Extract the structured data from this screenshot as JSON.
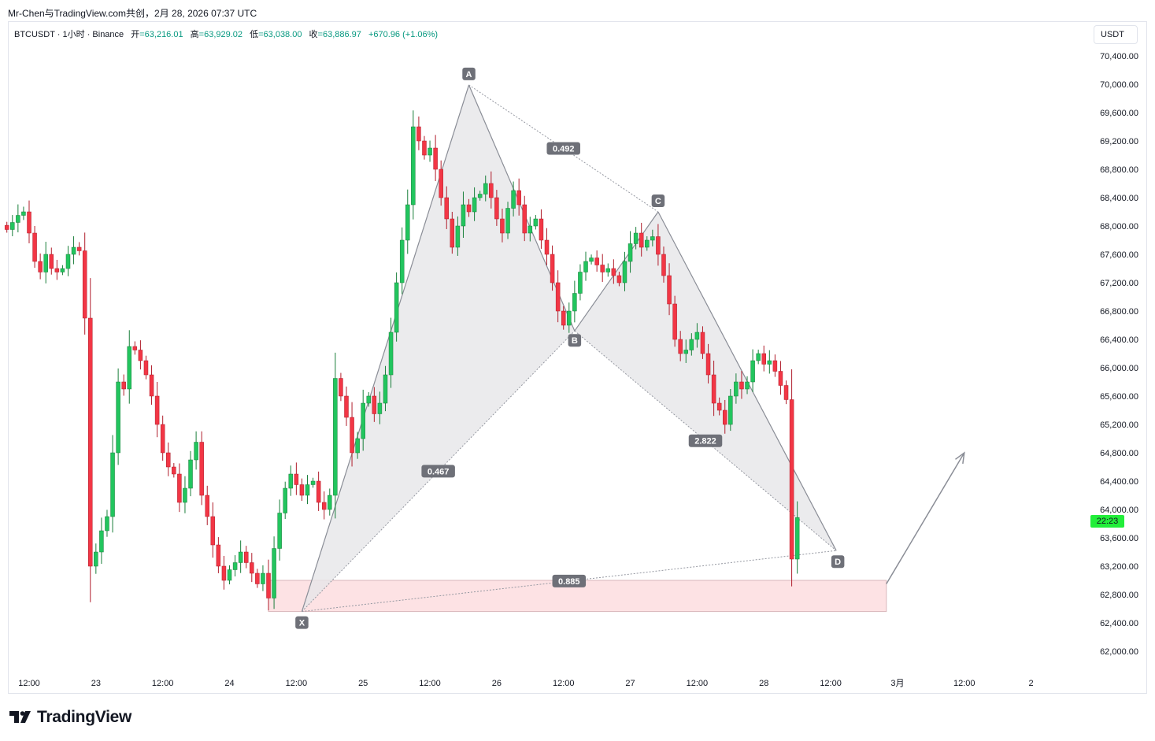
{
  "header": {
    "title": "Mr-Chen与TradingView.com共创，2月 28, 2026 07:37 UTC"
  },
  "legend": {
    "symbol": "BTCUSDT · 1小时 · Binance",
    "open_label": "开",
    "open_value": "=63,216.01",
    "high_label": "高",
    "high_value": "=63,929.02",
    "low_label": "低",
    "low_value": "=63,038.00",
    "close_label": "收",
    "close_value": "=63,886.97",
    "change": "+670.96 (+1.06%)"
  },
  "currency_button": "USDT",
  "countdown": "22:23",
  "brand": {
    "name": "TradingView",
    "logo_icon": "tradingview-logo-icon"
  },
  "colors": {
    "up": "#22c55e",
    "down": "#f23645",
    "pattern_fill": "#e6e6e9",
    "zone_fill": "#fde2e4",
    "countdown_bg": "#22ee3a"
  },
  "chart_data": {
    "type": "candlestick",
    "y_axis": {
      "range": [
        61800,
        70700
      ],
      "ticks": [
        "70,400.00",
        "70,000.00",
        "69,600.00",
        "69,200.00",
        "68,800.00",
        "68,400.00",
        "68,000.00",
        "67,600.00",
        "67,200.00",
        "66,800.00",
        "66,400.00",
        "66,000.00",
        "65,600.00",
        "65,200.00",
        "64,800.00",
        "64,400.00",
        "64,000.00",
        "63,600.00",
        "63,200.00",
        "62,800.00",
        "62,400.00",
        "62,000.00"
      ],
      "tick_values": [
        70400,
        70000,
        69600,
        69200,
        68800,
        68400,
        68000,
        67600,
        67200,
        66800,
        66400,
        66000,
        65600,
        65200,
        64800,
        64400,
        64000,
        63600,
        63200,
        62800,
        62400,
        62000
      ]
    },
    "x_axis": {
      "start": "2026-02-22 08:00",
      "end": "2026-03-02 10:00",
      "ticks": [
        {
          "label": "12:00",
          "t": "2026-02-22 12:00"
        },
        {
          "label": "23",
          "t": "2026-02-23 00:00"
        },
        {
          "label": "12:00",
          "t": "2026-02-23 12:00"
        },
        {
          "label": "24",
          "t": "2026-02-24 00:00"
        },
        {
          "label": "12:00",
          "t": "2026-02-24 12:00"
        },
        {
          "label": "25",
          "t": "2026-02-25 00:00"
        },
        {
          "label": "12:00",
          "t": "2026-02-25 12:00"
        },
        {
          "label": "26",
          "t": "2026-02-26 00:00"
        },
        {
          "label": "12:00",
          "t": "2026-02-26 12:00"
        },
        {
          "label": "27",
          "t": "2026-02-27 00:00"
        },
        {
          "label": "12:00",
          "t": "2026-02-27 12:00"
        },
        {
          "label": "28",
          "t": "2026-02-28 00:00"
        },
        {
          "label": "12:00",
          "t": "2026-02-28 12:00"
        },
        {
          "label": "3月",
          "t": "2026-03-01 00:00"
        },
        {
          "label": "12:00",
          "t": "2026-03-01 12:00"
        },
        {
          "label": "2",
          "t": "2026-03-02 00:00"
        }
      ]
    },
    "candles_start": "2026-02-22 08:00",
    "candle_interval": "1小时",
    "close_path": [
      67950,
      68050,
      68150,
      68200,
      67900,
      67500,
      67350,
      67600,
      67400,
      67350,
      67400,
      67600,
      67700,
      67650,
      66700,
      63200,
      63400,
      63700,
      63900,
      64800,
      65800,
      65700,
      66300,
      66250,
      66100,
      65900,
      65600,
      65200,
      64800,
      64600,
      64500,
      64100,
      64300,
      64700,
      64950,
      64200,
      63900,
      63500,
      63200,
      63000,
      63150,
      63250,
      63400,
      63250,
      63100,
      62950,
      63100,
      62750,
      63450,
      63950,
      64300,
      64500,
      64350,
      64200,
      64350,
      64400,
      64100,
      64000,
      64200,
      65850,
      65600,
      65300,
      64800,
      65000,
      65500,
      65600,
      65350,
      65500,
      65900,
      66500,
      67200,
      67800,
      68300,
      69400,
      69200,
      69000,
      69100,
      68800,
      68400,
      68100,
      67700,
      68000,
      68300,
      68200,
      68400,
      68450,
      68600,
      68400,
      68100,
      67900,
      68250,
      68500,
      68300,
      67900,
      68000,
      68100,
      67800,
      67600,
      67200,
      66800,
      66600,
      66800,
      67050,
      67350,
      67500,
      67550,
      67450,
      67350,
      67400,
      67300,
      67200,
      67500,
      67750,
      67900,
      67700,
      67800,
      67850,
      67600,
      67300,
      66900,
      66400,
      66200,
      66250,
      66400,
      66500,
      66200,
      65900,
      65500,
      65400,
      65200,
      65600,
      65800,
      65700,
      65800,
      66100,
      66200,
      66050,
      66100,
      65950,
      65750,
      65550,
      63300,
      63887
    ]
  },
  "pattern": {
    "points": [
      {
        "label": "X",
        "t": "2026-02-24 13:00",
        "price": 62560
      },
      {
        "label": "A",
        "t": "2026-02-25 19:00",
        "price": 69990
      },
      {
        "label": "B",
        "t": "2026-02-26 14:00",
        "price": 66520
      },
      {
        "label": "C",
        "t": "2026-02-27 05:00",
        "price": 68200
      },
      {
        "label": "D",
        "t": "2026-02-28 13:00",
        "price": 63420
      }
    ],
    "ratios": [
      {
        "label": "0.492",
        "between": "A-C"
      },
      {
        "label": "0.467",
        "between": "X-B"
      },
      {
        "label": "2.822",
        "between": "B-D"
      },
      {
        "label": "0.885",
        "between": "X-D"
      }
    ],
    "support_zone": {
      "price_low": 62560,
      "price_high": 63000,
      "t_start": "2026-02-24 07:00",
      "t_end": "2026-02-28 22:00"
    },
    "projection_arrow": {
      "t_start": "2026-02-28 22:00",
      "price_start": 62950,
      "t_end": "2026-03-01 12:00",
      "price_end": 64800
    }
  }
}
